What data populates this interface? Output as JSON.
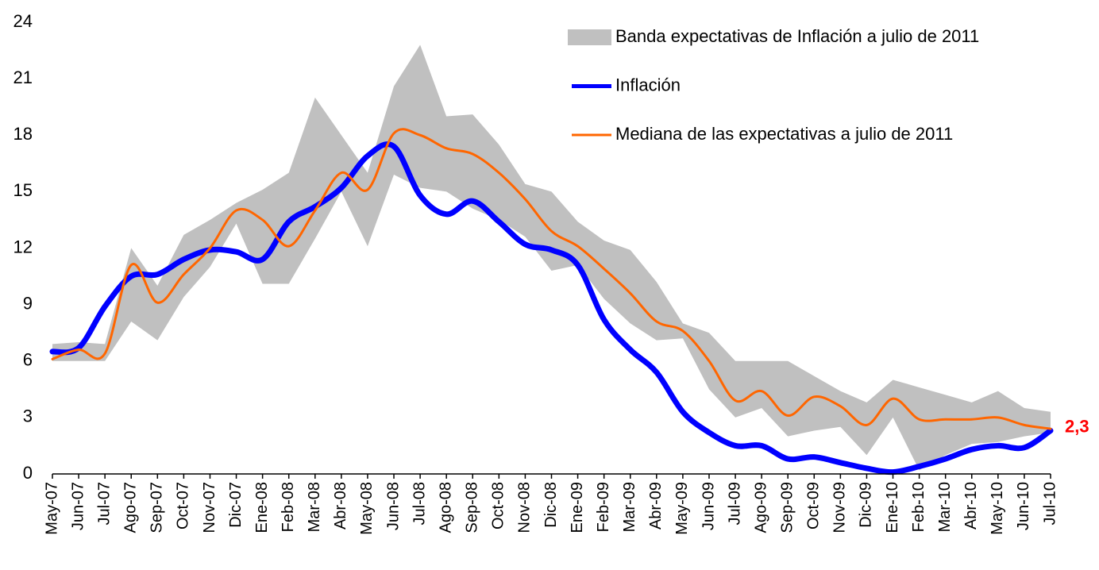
{
  "chart_data": {
    "type": "line",
    "categories": [
      "May-07",
      "Jun-07",
      "Jul-07",
      "Ago-07",
      "Sep-07",
      "Oct-07",
      "Nov-07",
      "Dic-07",
      "Ene-08",
      "Feb-08",
      "Mar-08",
      "Abr-08",
      "May-08",
      "Jun-08",
      "Jul-08",
      "Ago-08",
      "Sep-08",
      "Oct-08",
      "Nov-08",
      "Dic-08",
      "Ene-09",
      "Feb-09",
      "Mar-09",
      "Abr-09",
      "May-09",
      "Jun-09",
      "Jul-09",
      "Ago-09",
      "Sep-09",
      "Oct-09",
      "Nov-09",
      "Dic-09",
      "Ene-10",
      "Feb-10",
      "Mar-10",
      "Abr-10",
      "May-10",
      "Jun-10",
      "Jul-10"
    ],
    "series": [
      {
        "name": "Banda expectativas de Inflación a julio de 2011",
        "color": "#c0c0c0",
        "type": "band",
        "high": [
          6.9,
          7.0,
          6.9,
          12.0,
          10.0,
          12.7,
          13.5,
          14.4,
          15.1,
          16.0,
          20.0,
          18.0,
          16.0,
          20.6,
          22.8,
          19.0,
          19.1,
          17.5,
          15.4,
          15.0,
          13.4,
          12.4,
          11.9,
          10.2,
          8.0,
          7.5,
          6.0,
          6.0,
          6.0,
          5.2,
          4.4,
          3.8,
          5.0,
          4.6,
          4.2,
          3.8,
          4.4,
          3.5,
          3.3
        ],
        "low": [
          6.0,
          6.0,
          6.0,
          8.1,
          7.1,
          9.4,
          11.0,
          13.3,
          10.1,
          10.1,
          12.5,
          15.0,
          12.1,
          15.9,
          15.2,
          15.0,
          14.1,
          13.5,
          12.6,
          10.8,
          11.1,
          9.3,
          8.0,
          7.1,
          7.2,
          4.5,
          3.0,
          3.5,
          2.0,
          2.3,
          2.5,
          1.0,
          3.0,
          0.2,
          1.0,
          1.6,
          1.7,
          2.0,
          2.2
        ]
      },
      {
        "name": "Inflación",
        "color": "#0000ff",
        "type": "line",
        "values": [
          6.5,
          6.7,
          8.9,
          10.5,
          10.6,
          11.4,
          11.9,
          11.8,
          11.4,
          13.4,
          14.2,
          15.2,
          16.9,
          17.4,
          14.8,
          13.8,
          14.5,
          13.4,
          12.2,
          11.9,
          11.1,
          8.2,
          6.6,
          5.4,
          3.3,
          2.2,
          1.5,
          1.5,
          0.8,
          0.9,
          0.6,
          0.3,
          0.1,
          0.4,
          0.8,
          1.3,
          1.5,
          1.4,
          2.3
        ],
        "value_labels": [
          null,
          null,
          null,
          null,
          null,
          null,
          null,
          null,
          null,
          null,
          null,
          null,
          null,
          null,
          null,
          null,
          null,
          null,
          null,
          null,
          null,
          null,
          null,
          null,
          null,
          null,
          null,
          null,
          null,
          null,
          null,
          null,
          null,
          null,
          null,
          null,
          null,
          null,
          "2,3"
        ],
        "label_color": "#ff0000"
      },
      {
        "name": "Mediana de las expectativas a julio de 2011",
        "color": "#ff6600",
        "type": "line",
        "values": [
          6.1,
          6.6,
          6.4,
          11.1,
          9.1,
          10.6,
          12.0,
          14.0,
          13.5,
          12.1,
          14.0,
          16.0,
          15.1,
          18.1,
          18.0,
          17.3,
          17.0,
          16.0,
          14.6,
          12.9,
          12.1,
          10.9,
          9.6,
          8.1,
          7.6,
          6.0,
          3.9,
          4.4,
          3.1,
          4.1,
          3.6,
          2.6,
          4.0,
          2.9,
          2.9,
          2.9,
          3.0,
          2.6,
          2.4
        ]
      }
    ],
    "ylim": [
      0,
      24
    ],
    "yticks": [
      0,
      3,
      6,
      9,
      12,
      15,
      18,
      21,
      24
    ],
    "grid": false,
    "smooth": true,
    "legend": "upper right"
  }
}
